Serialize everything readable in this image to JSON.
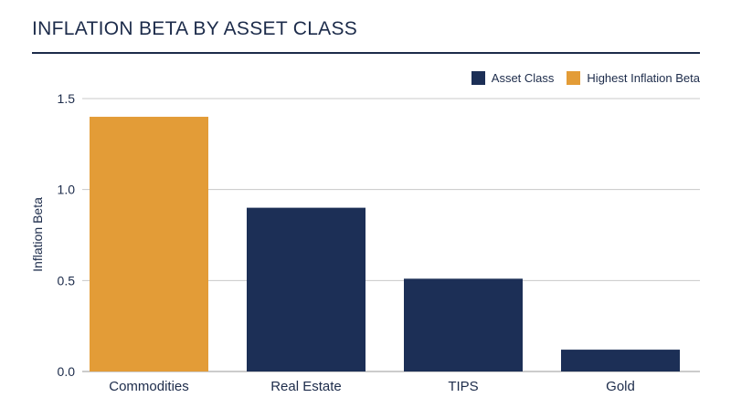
{
  "header": {
    "title": "INFLATION BETA BY ASSET CLASS"
  },
  "legend": {
    "items": [
      {
        "label": "Asset Class",
        "color": "#1c2f56"
      },
      {
        "label": "Highest Inflation Beta",
        "color": "#e39c37"
      }
    ]
  },
  "chart_data": {
    "type": "bar",
    "title": "INFLATION BETA BY ASSET CLASS",
    "xlabel": "",
    "ylabel": "Inflation Beta",
    "categories": [
      "Commodities",
      "Real Estate",
      "TIPS",
      "Gold"
    ],
    "values": [
      1.4,
      0.9,
      0.51,
      0.12
    ],
    "highlight": [
      true,
      false,
      false,
      false
    ],
    "ylim": [
      0,
      1.5
    ],
    "yticks": [
      0.0,
      0.5,
      1.0,
      1.5
    ],
    "ytick_labels": [
      "0.0",
      "0.5",
      "1.0",
      "1.5"
    ],
    "grid": true,
    "legend_position": "top-right",
    "colors": {
      "default": "#1c2f56",
      "highlight": "#e39c37",
      "grid": "#c8c8c8"
    }
  }
}
